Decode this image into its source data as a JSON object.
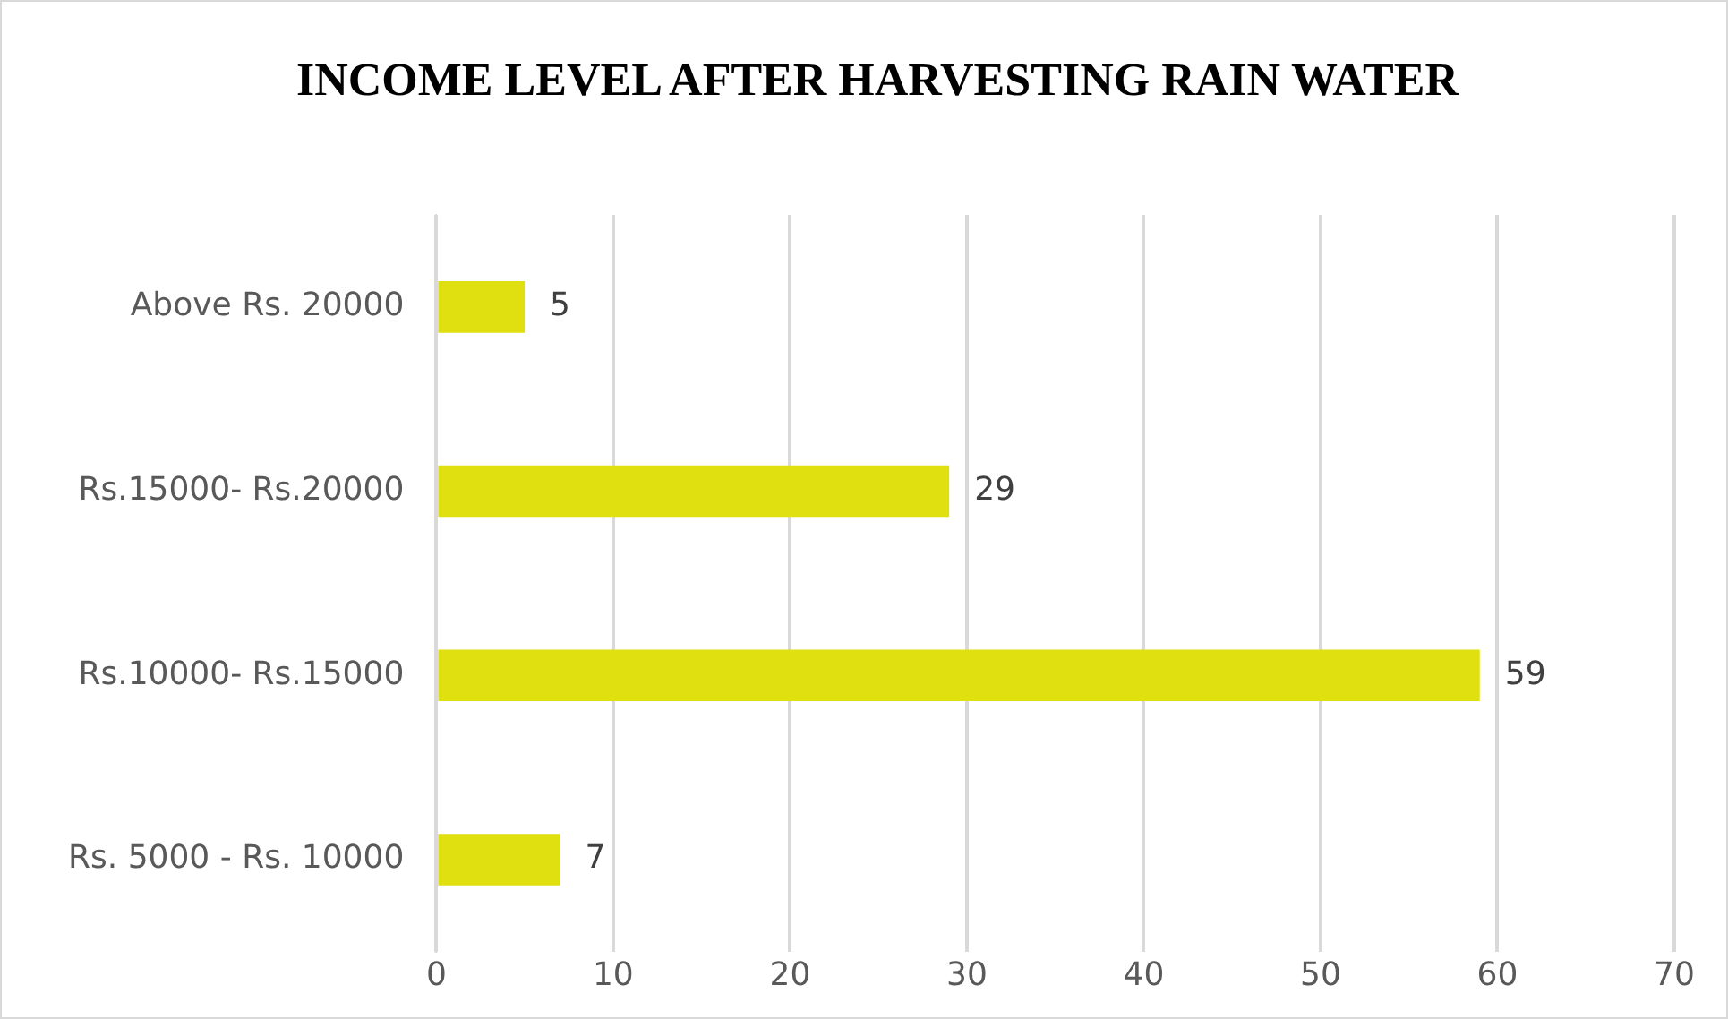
{
  "chart_data": {
    "type": "bar",
    "orientation": "horizontal",
    "title": "INCOME LEVEL AFTER HARVESTING RAIN WATER",
    "categories": [
      "Above Rs. 20000",
      "Rs.15000- Rs.20000",
      "Rs.10000- Rs.15000",
      "Rs. 5000 - Rs. 10000"
    ],
    "values": [
      5,
      29,
      59,
      7
    ],
    "color": "#e0e010",
    "xlim": [
      0,
      70
    ],
    "xticks": [
      0,
      10,
      20,
      30,
      40,
      50,
      60,
      70
    ],
    "grid": "x",
    "data_labels": true,
    "legend": false
  }
}
